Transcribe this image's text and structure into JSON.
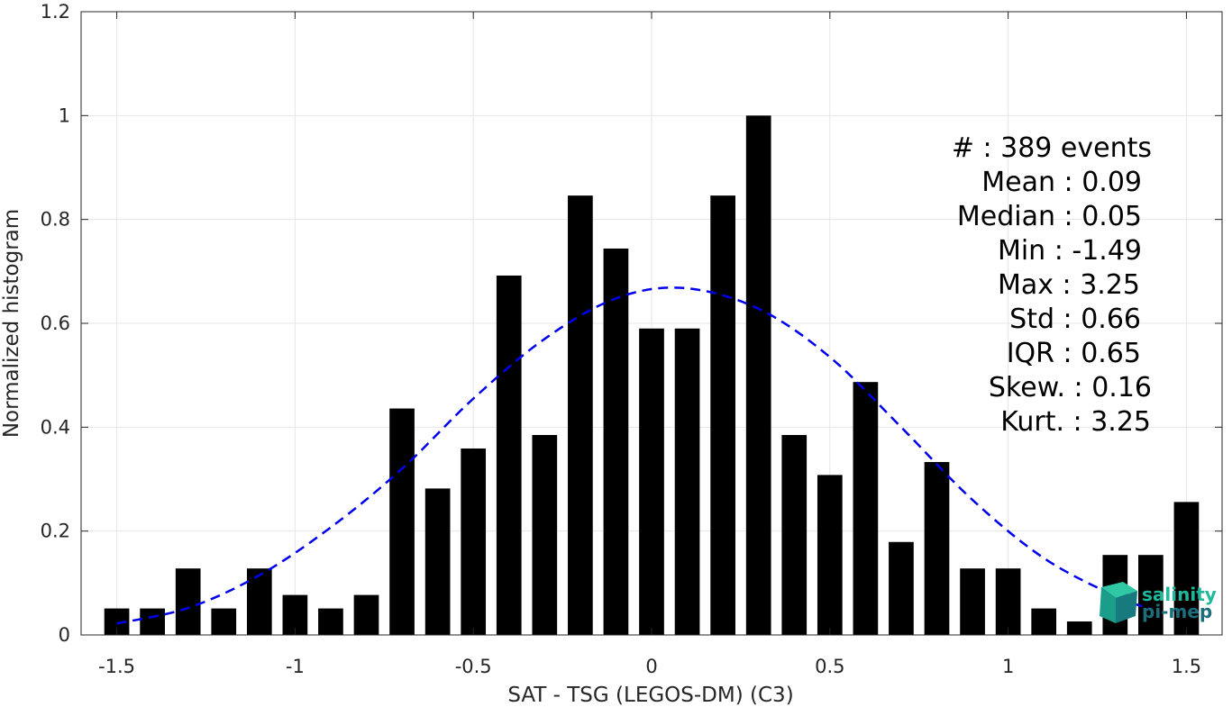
{
  "chart_data": {
    "type": "bar",
    "xlabel": "SAT - TSG (LEGOS-DM) (C3)",
    "ylabel": "Normalized histogram",
    "xlim": [
      -1.6,
      1.6
    ],
    "ylim": [
      0,
      1.2
    ],
    "grid": true,
    "xticks": [
      -1.5,
      -1,
      -0.5,
      0,
      0.5,
      1,
      1.5
    ],
    "xtick_labels": [
      "-1.5",
      "-1",
      "-0.5",
      "0",
      "0.5",
      "1",
      "1.5"
    ],
    "yticks": [
      0,
      0.2,
      0.4,
      0.6,
      0.8,
      1,
      1.2
    ],
    "ytick_labels": [
      "0",
      "0.2",
      "0.4",
      "0.6",
      "0.8",
      "1",
      "1.2"
    ],
    "bin_width": 0.1,
    "series": [
      {
        "type": "bar",
        "color": "#000000",
        "x": [
          -1.5,
          -1.4,
          -1.3,
          -1.2,
          -1.1,
          -1.0,
          -0.9,
          -0.8,
          -0.7,
          -0.6,
          -0.5,
          -0.4,
          -0.3,
          -0.2,
          -0.1,
          0.0,
          0.1,
          0.2,
          0.3,
          0.4,
          0.5,
          0.6,
          0.7,
          0.8,
          0.9,
          1.0,
          1.1,
          1.2,
          1.3,
          1.4,
          1.5
        ],
        "values": [
          0.051,
          0.051,
          0.128,
          0.051,
          0.128,
          0.077,
          0.051,
          0.077,
          0.436,
          0.282,
          0.359,
          0.692,
          0.385,
          0.846,
          0.744,
          0.59,
          0.59,
          0.846,
          1.0,
          0.385,
          0.308,
          0.487,
          0.179,
          0.333,
          0.128,
          0.128,
          0.051,
          0.026,
          0.154,
          0.154,
          0.256
        ]
      },
      {
        "type": "line",
        "style": "dashed",
        "color": "#0000ee",
        "x": [
          -1.5,
          -1.3,
          -1.1,
          -0.9,
          -0.7,
          -0.5,
          -0.3,
          -0.1,
          0.09,
          0.3,
          0.5,
          0.7,
          0.9,
          1.1,
          1.3,
          1.4
        ],
        "values": [
          0.022,
          0.052,
          0.115,
          0.207,
          0.32,
          0.455,
          0.57,
          0.648,
          0.668,
          0.628,
          0.535,
          0.4,
          0.26,
          0.148,
          0.075,
          0.05
        ]
      }
    ],
    "stats": [
      {
        "label": "#  : 389 events"
      },
      {
        "label": "Mean : 0.09"
      },
      {
        "label": "Median : 0.05"
      },
      {
        "label": "Min : -1.49"
      },
      {
        "label": "Max : 3.25"
      },
      {
        "label": "Std : 0.66"
      },
      {
        "label": "IQR : 0.65"
      },
      {
        "label": "Skew. : 0.16"
      },
      {
        "label": "Kurt. : 3.25"
      }
    ]
  },
  "logo": {
    "line1": "salinity",
    "line2": "pi-mep",
    "color1": "#1fb89a",
    "color2": "#1d6e7d"
  }
}
